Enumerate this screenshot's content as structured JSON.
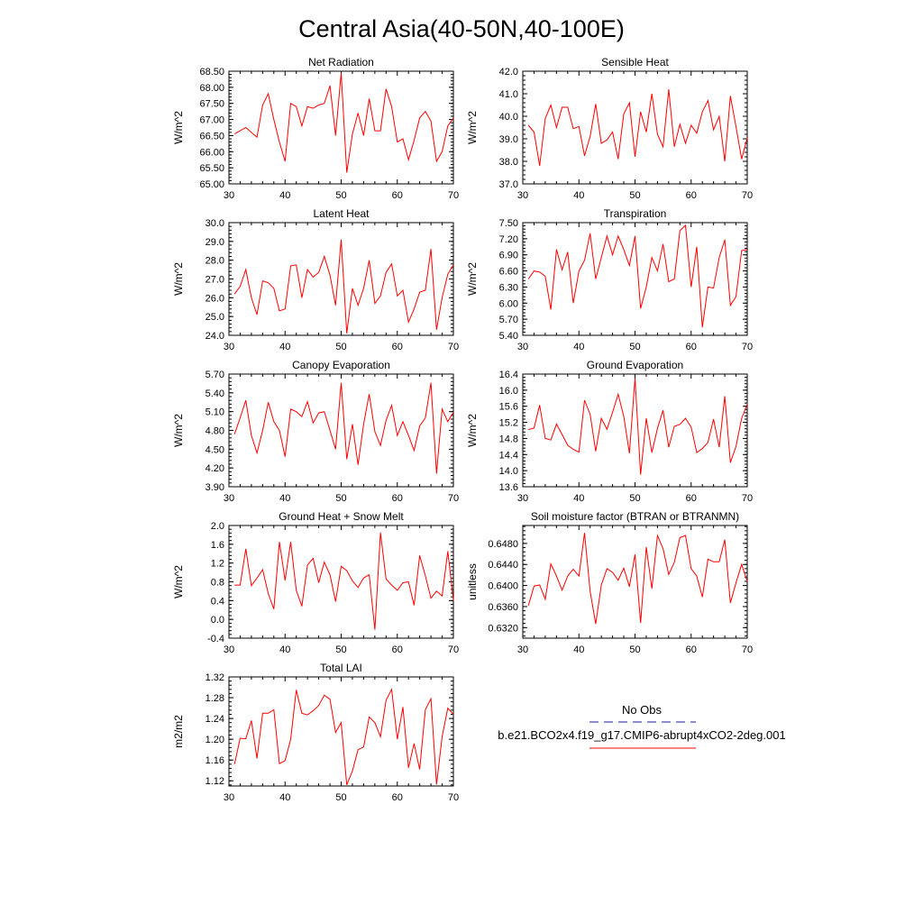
{
  "title": "Central Asia(40-50N,40-100E)",
  "colors": {
    "model_line": "#ff0000",
    "obs_line": "#1a1a9c",
    "axis": "#000000"
  },
  "legend": {
    "obs_label": "No Obs",
    "model_label": "b.e21.BCO2x4.f19_g17.CMIP6-abrupt4xCO2-2deg.001"
  },
  "chart_data": [
    {
      "type": "line",
      "title": "Net Radiation",
      "ylabel": "W/m^2",
      "xlim": [
        30,
        70
      ],
      "ylim": [
        65.0,
        68.5
      ],
      "xticks": [
        "30",
        "40",
        "50",
        "60",
        "70"
      ],
      "yticks": [
        "65.00",
        "65.50",
        "66.00",
        "66.50",
        "67.00",
        "67.50",
        "68.00",
        "68.50"
      ],
      "series": [
        {
          "x": [
            31,
            33,
            35,
            36,
            37,
            38,
            39,
            40,
            41,
            42,
            43,
            44,
            45,
            46,
            47,
            48,
            49,
            50,
            51,
            52,
            53,
            54,
            55,
            56,
            57,
            58,
            59,
            60,
            61,
            62,
            63,
            64,
            65,
            66,
            67,
            68,
            69,
            70
          ],
          "y": [
            66.55,
            66.75,
            66.45,
            67.45,
            67.8,
            67.0,
            66.3,
            65.7,
            67.5,
            67.4,
            66.8,
            67.4,
            67.35,
            67.45,
            67.5,
            68.05,
            66.5,
            68.45,
            65.35,
            66.55,
            67.2,
            66.5,
            67.65,
            66.65,
            66.65,
            67.95,
            67.4,
            66.3,
            66.4,
            65.75,
            66.35,
            67.05,
            67.25,
            66.95,
            65.7,
            66.0,
            66.8,
            67.05
          ]
        }
      ]
    },
    {
      "type": "line",
      "title": "Sensible Heat",
      "ylabel": "W/m^2",
      "xlim": [
        30,
        70
      ],
      "ylim": [
        37.0,
        42.0
      ],
      "xticks": [
        "30",
        "40",
        "50",
        "60",
        "70"
      ],
      "yticks": [
        "37.0",
        "38.0",
        "39.0",
        "40.0",
        "41.0",
        "42.0"
      ],
      "series": [
        {
          "x": [
            31,
            32,
            33,
            34,
            35,
            36,
            37,
            38,
            39,
            40,
            41,
            42,
            43,
            44,
            45,
            46,
            47,
            48,
            49,
            50,
            51,
            52,
            53,
            54,
            55,
            56,
            57,
            58,
            59,
            60,
            61,
            62,
            63,
            64,
            65,
            66,
            67,
            68,
            69,
            70
          ],
          "y": [
            39.6,
            39.3,
            37.8,
            39.9,
            40.5,
            39.5,
            40.4,
            40.4,
            39.45,
            39.55,
            38.25,
            39.1,
            40.55,
            38.8,
            38.95,
            39.3,
            38.1,
            40.1,
            40.6,
            38.2,
            40.2,
            39.3,
            41.0,
            39.2,
            38.65,
            41.2,
            38.65,
            39.65,
            38.8,
            39.6,
            39.25,
            40.2,
            40.7,
            39.4,
            40.0,
            38.0,
            40.9,
            39.55,
            38.1,
            39.05
          ]
        }
      ]
    },
    {
      "type": "line",
      "title": "Latent Heat",
      "ylabel": "W/m^2",
      "xlim": [
        30,
        70
      ],
      "ylim": [
        24.0,
        30.0
      ],
      "xticks": [
        "30",
        "40",
        "50",
        "60",
        "70"
      ],
      "yticks": [
        "24.0",
        "25.0",
        "26.0",
        "27.0",
        "28.0",
        "29.0",
        "30.0"
      ],
      "series": [
        {
          "x": [
            31,
            32,
            33,
            34,
            35,
            36,
            37,
            38,
            39,
            40,
            41,
            42,
            43,
            44,
            45,
            46,
            47,
            48,
            49,
            50,
            51,
            52,
            53,
            54,
            55,
            56,
            57,
            58,
            59,
            60,
            61,
            62,
            63,
            64,
            65,
            66,
            67,
            68,
            69,
            70
          ],
          "y": [
            26.2,
            26.6,
            27.5,
            26.0,
            25.1,
            26.9,
            26.8,
            26.5,
            25.3,
            25.4,
            27.7,
            27.75,
            26.0,
            27.5,
            27.1,
            27.35,
            28.2,
            27.2,
            25.6,
            29.1,
            24.1,
            26.5,
            25.6,
            26.5,
            28.0,
            25.7,
            26.1,
            27.35,
            27.8,
            26.1,
            26.4,
            24.7,
            25.4,
            26.3,
            26.4,
            28.6,
            24.3,
            26.0,
            27.25,
            27.75
          ]
        }
      ]
    },
    {
      "type": "line",
      "title": "Transpiration",
      "ylabel": "W/m^2",
      "xlim": [
        30,
        70
      ],
      "ylim": [
        5.4,
        7.5
      ],
      "xticks": [
        "30",
        "40",
        "50",
        "60",
        "70"
      ],
      "yticks": [
        "5.40",
        "5.70",
        "6.00",
        "6.30",
        "6.60",
        "6.90",
        "7.20",
        "7.50"
      ],
      "series": [
        {
          "x": [
            31,
            32,
            33,
            34,
            35,
            36,
            37,
            38,
            39,
            40,
            41,
            42,
            43,
            44,
            45,
            46,
            47,
            48,
            49,
            50,
            51,
            52,
            53,
            54,
            55,
            56,
            57,
            58,
            59,
            60,
            61,
            62,
            63,
            64,
            65,
            66,
            67,
            68,
            69,
            70
          ],
          "y": [
            6.45,
            6.6,
            6.58,
            6.5,
            5.88,
            7.0,
            6.62,
            6.95,
            6.0,
            6.6,
            6.8,
            7.3,
            6.45,
            6.85,
            7.25,
            6.9,
            7.25,
            7.0,
            6.7,
            7.25,
            5.9,
            6.3,
            6.85,
            6.6,
            7.1,
            6.4,
            6.45,
            7.35,
            7.45,
            6.3,
            7.05,
            5.55,
            6.3,
            6.28,
            6.85,
            7.18,
            5.96,
            6.12,
            6.98,
            7.0
          ]
        }
      ]
    },
    {
      "type": "line",
      "title": "Canopy Evaporation",
      "ylabel": "W/m^2",
      "xlim": [
        30,
        70
      ],
      "ylim": [
        3.9,
        5.7
      ],
      "xticks": [
        "30",
        "40",
        "50",
        "60",
        "70"
      ],
      "yticks": [
        "3.90",
        "4.20",
        "4.50",
        "4.80",
        "5.10",
        "5.40",
        "5.70"
      ],
      "series": [
        {
          "x": [
            31,
            32,
            33,
            34,
            35,
            36,
            37,
            38,
            39,
            40,
            41,
            42,
            43,
            44,
            45,
            46,
            47,
            48,
            49,
            50,
            51,
            52,
            53,
            54,
            55,
            56,
            57,
            58,
            59,
            60,
            61,
            62,
            63,
            64,
            65,
            66,
            67,
            68,
            69,
            70
          ],
          "y": [
            4.74,
            5.0,
            5.28,
            4.72,
            4.44,
            4.8,
            5.25,
            4.94,
            4.8,
            4.38,
            5.14,
            5.1,
            5.02,
            5.26,
            4.92,
            5.08,
            5.1,
            4.8,
            4.5,
            5.56,
            4.34,
            4.9,
            4.25,
            4.9,
            5.38,
            4.78,
            4.56,
            4.96,
            5.2,
            4.72,
            4.94,
            4.72,
            4.48,
            4.87,
            5.0,
            5.56,
            4.11,
            5.14,
            4.94,
            5.09
          ]
        }
      ]
    },
    {
      "type": "line",
      "title": "Ground Evaporation",
      "ylabel": "W/m^2",
      "xlim": [
        30,
        70
      ],
      "ylim": [
        13.6,
        16.4
      ],
      "xticks": [
        "30",
        "40",
        "50",
        "60",
        "70"
      ],
      "yticks": [
        "13.6",
        "14.0",
        "14.4",
        "14.8",
        "15.2",
        "15.6",
        "16.0",
        "16.4"
      ],
      "series": [
        {
          "x": [
            31,
            32,
            33,
            34,
            35,
            36,
            37,
            38,
            39,
            40,
            41,
            42,
            43,
            44,
            45,
            46,
            47,
            48,
            49,
            50,
            51,
            52,
            53,
            54,
            55,
            56,
            57,
            58,
            59,
            60,
            61,
            62,
            63,
            64,
            65,
            66,
            67,
            68,
            69,
            70
          ],
          "y": [
            15.02,
            15.06,
            15.63,
            14.8,
            14.76,
            15.16,
            14.9,
            14.63,
            14.53,
            14.46,
            15.75,
            15.4,
            14.48,
            15.3,
            15.03,
            15.45,
            15.9,
            15.35,
            14.43,
            16.3,
            13.9,
            15.3,
            14.45,
            15.05,
            15.5,
            14.58,
            15.1,
            15.15,
            15.3,
            15.08,
            14.45,
            14.55,
            14.7,
            15.28,
            14.58,
            15.85,
            14.2,
            14.6,
            15.3,
            15.65
          ]
        }
      ]
    },
    {
      "type": "line",
      "title": "Ground Heat + Snow Melt",
      "ylabel": "W/m^2",
      "xlim": [
        30,
        70
      ],
      "ylim": [
        -0.4,
        2.0
      ],
      "xticks": [
        "30",
        "40",
        "50",
        "60",
        "70"
      ],
      "yticks": [
        "-0.4",
        "0.0",
        "0.4",
        "0.8",
        "1.2",
        "1.6",
        "2.0"
      ],
      "series": [
        {
          "x": [
            31,
            32,
            33,
            34,
            35,
            36,
            37,
            38,
            39,
            40,
            41,
            42,
            43,
            44,
            45,
            46,
            47,
            48,
            49,
            50,
            51,
            52,
            53,
            54,
            55,
            56,
            57,
            58,
            59,
            60,
            61,
            62,
            63,
            64,
            65,
            66,
            67,
            68,
            69,
            70
          ],
          "y": [
            0.73,
            0.73,
            1.5,
            0.72,
            0.88,
            1.06,
            0.55,
            0.22,
            1.65,
            0.83,
            1.65,
            0.62,
            0.28,
            1.16,
            1.3,
            0.78,
            1.22,
            0.95,
            0.38,
            1.13,
            1.04,
            0.82,
            0.68,
            0.88,
            0.95,
            -0.22,
            1.85,
            0.86,
            0.73,
            0.62,
            0.78,
            0.8,
            0.3,
            1.36,
            0.93,
            0.45,
            0.6,
            0.5,
            1.45,
            0.4
          ]
        }
      ]
    },
    {
      "type": "line",
      "title": "Soil moisture factor (BTRAN or BTRANMN)",
      "ylabel": "unitless",
      "xlim": [
        30,
        70
      ],
      "ylim": [
        0.63,
        0.6514
      ],
      "xticks": [
        "30",
        "40",
        "50",
        "60",
        "70"
      ],
      "yticks": [
        "0.6320",
        "0.6360",
        "0.6400",
        "0.6440",
        "0.6480"
      ],
      "series": [
        {
          "x": [
            31,
            32,
            33,
            34,
            35,
            36,
            37,
            38,
            39,
            40,
            41,
            42,
            43,
            44,
            45,
            46,
            47,
            48,
            49,
            50,
            51,
            52,
            53,
            54,
            55,
            56,
            57,
            58,
            59,
            60,
            61,
            62,
            63,
            64,
            65,
            66,
            67,
            68,
            69,
            70
          ],
          "y": [
            0.6362,
            0.6399,
            0.6401,
            0.6374,
            0.6441,
            0.6418,
            0.6391,
            0.6418,
            0.6431,
            0.6418,
            0.65,
            0.6389,
            0.6327,
            0.6401,
            0.6432,
            0.6425,
            0.641,
            0.6433,
            0.6398,
            0.6459,
            0.6329,
            0.6473,
            0.6394,
            0.6495,
            0.647,
            0.6421,
            0.6444,
            0.6491,
            0.6495,
            0.6432,
            0.6418,
            0.6378,
            0.645,
            0.6445,
            0.6445,
            0.6487,
            0.6367,
            0.6405,
            0.644,
            0.6408
          ]
        }
      ]
    },
    {
      "type": "line",
      "title": "Total LAI",
      "ylabel": "m2/m2",
      "xlim": [
        30,
        70
      ],
      "ylim": [
        1.11,
        1.32
      ],
      "xticks": [
        "30",
        "40",
        "50",
        "60",
        "70"
      ],
      "yticks": [
        "1.12",
        "1.16",
        "1.20",
        "1.24",
        "1.28",
        "1.32"
      ],
      "series": [
        {
          "x": [
            31,
            32,
            33,
            34,
            35,
            36,
            37,
            38,
            39,
            40,
            41,
            42,
            43,
            44,
            45,
            46,
            47,
            48,
            49,
            50,
            51,
            52,
            53,
            54,
            55,
            56,
            57,
            58,
            59,
            60,
            61,
            62,
            63,
            64,
            65,
            66,
            67,
            68,
            69,
            70
          ],
          "y": [
            1.152,
            1.202,
            1.201,
            1.236,
            1.163,
            1.25,
            1.25,
            1.257,
            1.153,
            1.159,
            1.2,
            1.295,
            1.25,
            1.247,
            1.255,
            1.265,
            1.285,
            1.277,
            1.213,
            1.232,
            1.112,
            1.139,
            1.18,
            1.185,
            1.243,
            1.232,
            1.205,
            1.275,
            1.296,
            1.2,
            1.262,
            1.145,
            1.192,
            1.142,
            1.257,
            1.278,
            1.113,
            1.205,
            1.26,
            1.248
          ]
        }
      ]
    }
  ]
}
